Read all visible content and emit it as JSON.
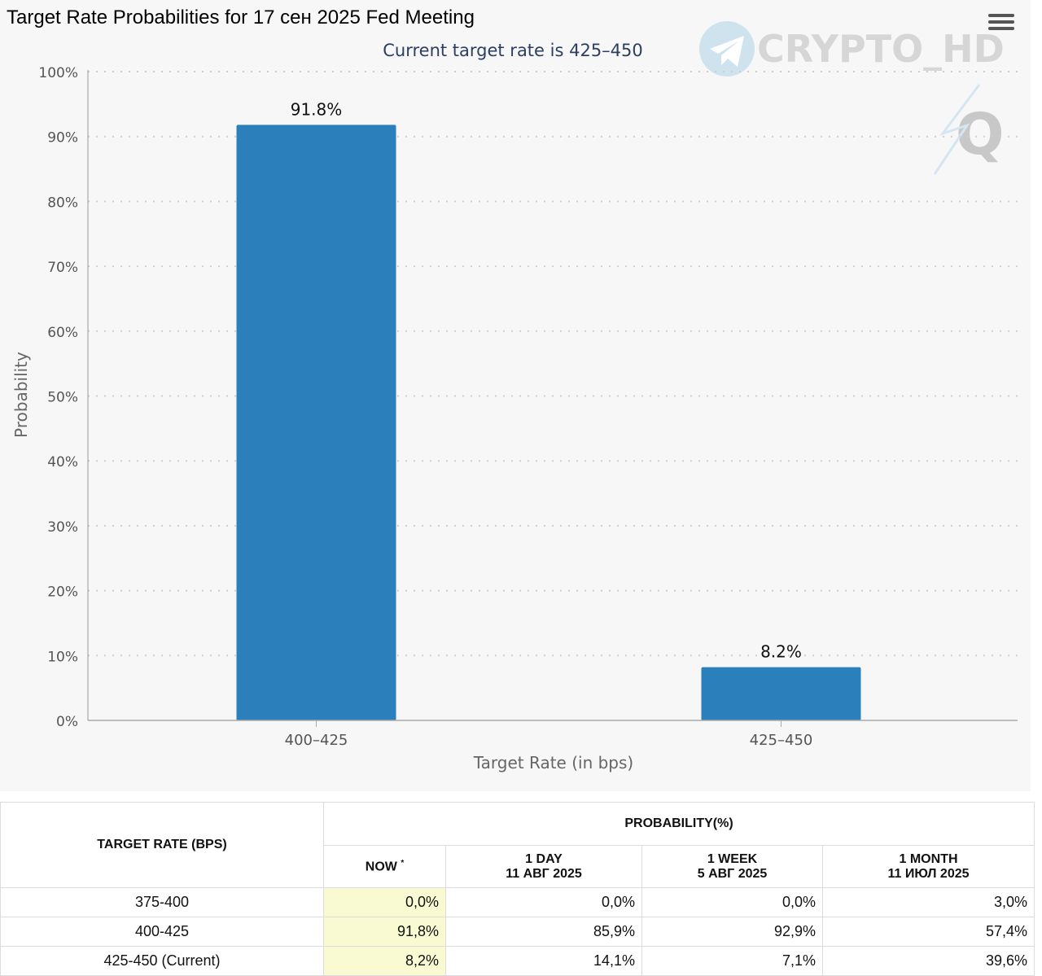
{
  "chart_data": {
    "type": "bar",
    "title": "Target Rate Probabilities for 17 сен 2025 Fed Meeting",
    "subtitle": "Current target rate is 425–450",
    "xlabel": "Target Rate (in bps)",
    "ylabel": "Probability",
    "categories": [
      "400–425",
      "425–450"
    ],
    "values": [
      91.8,
      8.2
    ],
    "data_labels": [
      "91.8%",
      "8.2%"
    ],
    "ylim": [
      0,
      100
    ],
    "yticks": [
      "0%",
      "10%",
      "20%",
      "30%",
      "40%",
      "50%",
      "60%",
      "70%",
      "80%",
      "90%",
      "100%"
    ],
    "grid": true,
    "bar_color": "#2b7fba"
  },
  "watermark": {
    "text": "CRYPTO_HD",
    "logo_letter": "Q"
  },
  "table": {
    "col_target": "TARGET RATE (BPS)",
    "col_prob": "PROBABILITY(%)",
    "col_now": "NOW",
    "col_now_mark": "*",
    "col_day": "1 DAY",
    "col_day_date": "11 АВГ 2025",
    "col_week": "1 WEEK",
    "col_week_date": "5 АВГ 2025",
    "col_month": "1 MONTH",
    "col_month_date": "11 ИЮЛ 2025",
    "rows": [
      {
        "rate": "375-400",
        "now": "0,0%",
        "day": "0,0%",
        "week": "0,0%",
        "month": "3,0%"
      },
      {
        "rate": "400-425",
        "now": "91,8%",
        "day": "85,9%",
        "week": "92,9%",
        "month": "57,4%"
      },
      {
        "rate": "425-450 (Current)",
        "now": "8,2%",
        "day": "14,1%",
        "week": "7,1%",
        "month": "39,6%"
      }
    ]
  }
}
